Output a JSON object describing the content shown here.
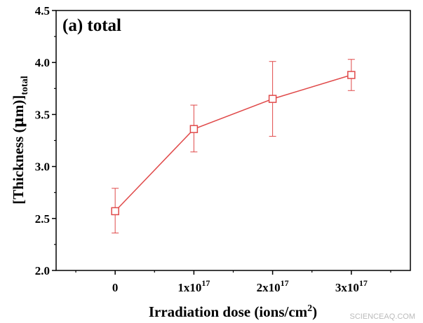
{
  "chart_data": {
    "type": "line",
    "panel_label": "(a) total",
    "categories": [
      "0",
      "1x10",
      "2x10",
      "3x10"
    ],
    "category_exponents": [
      "",
      "17",
      "17",
      "17"
    ],
    "x": [
      0,
      1,
      2,
      3
    ],
    "series": [
      {
        "values": [
          2.57,
          3.36,
          3.65,
          3.88
        ],
        "err_low": [
          2.36,
          3.14,
          3.29,
          3.73
        ],
        "err_high": [
          2.79,
          3.59,
          4.01,
          4.03
        ],
        "marker": "square-open",
        "color": "#e04a4a"
      }
    ],
    "xlabel_main": "Irradiation dose (ions/cm",
    "xlabel_sup": "2",
    "xlabel_end": ")",
    "ylabel_main": "[Thickness (",
    "ylabel_mu": "μ",
    "ylabel_unit": "m)]",
    "ylabel_sub": "total",
    "yticks": [
      "2.0",
      "2.5",
      "3.0",
      "3.5",
      "4.0",
      "4.5"
    ],
    "ylim": [
      2.0,
      4.5
    ],
    "xlim": [
      -0.75,
      3.75
    ],
    "grid": false,
    "legend": false
  },
  "watermark": "SCIENCEAQ.COM"
}
